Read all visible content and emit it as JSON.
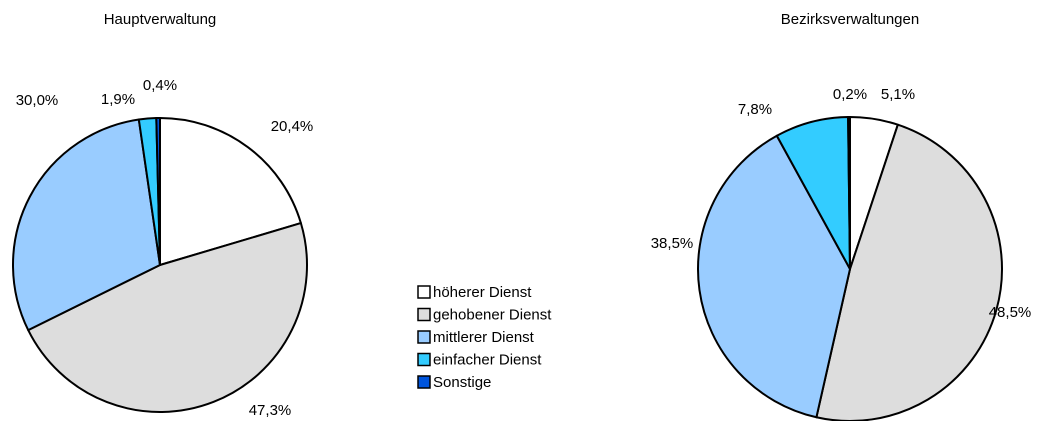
{
  "chart_data": [
    {
      "type": "pie",
      "title": "Hauptverwaltung",
      "categories": [
        "höherer Dienst",
        "gehobener Dienst",
        "mittlerer Dienst",
        "einfacher Dienst",
        "Sonstige"
      ],
      "values": [
        20.4,
        47.3,
        30.0,
        1.9,
        0.4
      ],
      "value_labels": [
        "20,4%",
        "47,3%",
        "30,0%",
        "1,9%",
        "0,4%"
      ],
      "colors": [
        "#ffffff",
        "#dddddd",
        "#99ccff",
        "#33ccff",
        "#0055dd"
      ]
    },
    {
      "type": "pie",
      "title": "Bezirksverwaltungen",
      "categories": [
        "höherer Dienst",
        "gehobener Dienst",
        "mittlerer Dienst",
        "einfacher Dienst",
        "Sonstige"
      ],
      "values": [
        5.1,
        48.5,
        38.5,
        7.8,
        0.2
      ],
      "value_labels": [
        "5,1%",
        "48,5%",
        "38,5%",
        "7,8%",
        "0,2%"
      ],
      "colors": [
        "#ffffff",
        "#dddddd",
        "#99ccff",
        "#33ccff",
        "#0055dd"
      ]
    }
  ]
}
